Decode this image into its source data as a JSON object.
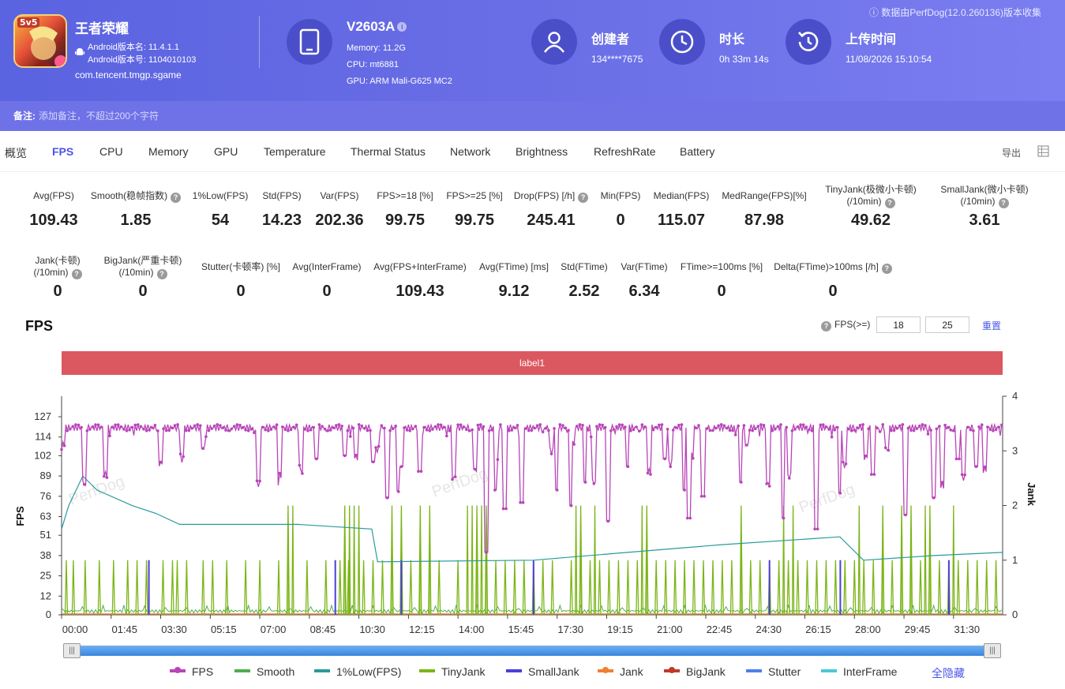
{
  "header": {
    "app_icon_badge": "5v5",
    "app_name": "王者荣耀",
    "android_version_name": "Android版本名: 11.4.1.1",
    "android_version_code": "Android版本号: 1104010103",
    "package": "com.tencent.tmgp.sgame",
    "device_name": "V2603A",
    "device_info_icon": "i",
    "memory": "Memory: 11.2G",
    "cpu": "CPU: mt6881",
    "gpu": "GPU: ARM Mali-G625 MC2",
    "creator_label": "创建者",
    "creator_value": "134****7675",
    "duration_label": "时长",
    "duration_value": "0h 33m 14s",
    "upload_label": "上传时间",
    "upload_value": "11/08/2026 15:10:54",
    "source_note": "ⓘ 数据由PerfDog(12.0.260136)版本收集"
  },
  "remark": {
    "label": "备注:",
    "placeholder": "添加备注，不超过200个字符"
  },
  "tabs": [
    "概览",
    "FPS",
    "CPU",
    "Memory",
    "GPU",
    "Temperature",
    "Thermal Status",
    "Network",
    "Brightness",
    "RefreshRate",
    "Battery"
  ],
  "active_tab": "FPS",
  "export_label": "导出",
  "stats_row1": [
    {
      "label": "Avg(FPS)",
      "value": "109.43"
    },
    {
      "label": "Smooth(稳帧指数)",
      "value": "1.85"
    },
    {
      "label": "1%Low(FPS)",
      "value": "54"
    },
    {
      "label": "Std(FPS)",
      "value": "14.23"
    },
    {
      "label": "Var(FPS)",
      "value": "202.36"
    },
    {
      "label": "FPS>=18 [%]",
      "value": "99.75"
    },
    {
      "label": "FPS>=25 [%]",
      "value": "99.75"
    },
    {
      "label": "Drop(FPS) [/h]",
      "value": "245.41"
    },
    {
      "label": "Min(FPS)",
      "value": "0"
    },
    {
      "label": "Median(FPS)",
      "value": "115.07"
    },
    {
      "label": "MedRange(FPS)[%]",
      "value": "87.98"
    },
    {
      "label": "TinyJank(极微小卡顿)",
      "label2": "(/10min)",
      "value": "49.62"
    },
    {
      "label": "SmallJank(微小卡顿)",
      "label2": "(/10min)",
      "value": "3.61"
    }
  ],
  "stats_row2": [
    {
      "label": "Jank(卡顿)",
      "label2": "(/10min)",
      "value": "0"
    },
    {
      "label": "BigJank(严重卡顿)",
      "label2": "(/10min)",
      "value": "0"
    },
    {
      "label": "Stutter(卡顿率) [%]",
      "value": "0"
    },
    {
      "label": "Avg(InterFrame)",
      "value": "0"
    },
    {
      "label": "Avg(FPS+InterFrame)",
      "value": "109.43"
    },
    {
      "label": "Avg(FTime) [ms]",
      "value": "9.12"
    },
    {
      "label": "Std(FTime)",
      "value": "2.52"
    },
    {
      "label": "Var(FTime)",
      "value": "6.34"
    },
    {
      "label": "FTime>=100ms [%]",
      "value": "0"
    },
    {
      "label": "Delta(FTime)>100ms [/h]",
      "value": "0"
    }
  ],
  "chart_header": {
    "title": "FPS",
    "threshold_label": "FPS(>=)",
    "threshold1": "18",
    "threshold2": "25",
    "reset": "重置",
    "label_bar": "label1",
    "help_icon": "?"
  },
  "chart_data": {
    "type": "line",
    "ylabel": "FPS",
    "y2label": "Jank",
    "y_ticks": [
      0,
      12,
      25,
      38,
      51,
      63,
      76,
      89,
      102,
      114,
      127
    ],
    "y2_ticks": [
      0,
      1,
      2,
      3,
      4
    ],
    "x_ticks": [
      "00:00",
      "01:45",
      "03:30",
      "05:15",
      "07:00",
      "08:45",
      "10:30",
      "12:15",
      "14:00",
      "15:45",
      "17:30",
      "19:15",
      "21:00",
      "22:45",
      "24:30",
      "26:15",
      "28:00",
      "29:45",
      "31:30"
    ],
    "x_range_seconds": [
      0,
      1994
    ],
    "ylim": [
      0,
      140
    ],
    "y2lim": [
      0,
      4
    ],
    "fps_baseline": 120,
    "fps_dips": [
      [
        540,
        100
      ],
      [
        600,
        102
      ],
      [
        660,
        98
      ],
      [
        690,
        75
      ],
      [
        720,
        95
      ],
      [
        760,
        92
      ],
      [
        900,
        40
      ],
      [
        920,
        80
      ],
      [
        940,
        68
      ],
      [
        975,
        72
      ],
      [
        1050,
        80
      ],
      [
        1080,
        70
      ],
      [
        1110,
        85
      ],
      [
        1160,
        60
      ],
      [
        1200,
        95
      ],
      [
        1280,
        100
      ],
      [
        1320,
        80
      ],
      [
        1330,
        62
      ],
      [
        1360,
        76
      ],
      [
        1440,
        85
      ],
      [
        1530,
        62
      ],
      [
        1600,
        55
      ],
      [
        1650,
        78
      ],
      [
        1720,
        90
      ],
      [
        1790,
        64
      ],
      [
        1850,
        75
      ],
      [
        1900,
        100
      ],
      [
        1940,
        95
      ]
    ],
    "low1_points": [
      [
        0,
        55
      ],
      [
        30,
        70
      ],
      [
        90,
        89
      ],
      [
        150,
        80
      ],
      [
        300,
        70
      ],
      [
        400,
        65
      ],
      [
        500,
        58
      ],
      [
        1000,
        58
      ],
      [
        1315,
        55
      ],
      [
        1340,
        34
      ],
      [
        2000,
        35
      ],
      [
        2400,
        40
      ],
      [
        2800,
        45
      ],
      [
        3300,
        50
      ],
      [
        3400,
        35
      ],
      [
        3700,
        38
      ],
      [
        3990,
        40
      ]
    ],
    "tinyjank_spike_times": [
      10,
      25,
      50,
      80,
      110,
      140,
      160,
      180,
      215,
      235,
      245,
      265,
      300,
      320,
      350,
      390,
      420,
      460,
      480,
      520,
      560,
      590,
      600,
      608,
      640,
      660,
      680,
      700,
      720,
      740,
      760,
      780,
      800,
      840,
      880,
      900,
      920,
      940,
      960,
      980,
      1000,
      1020,
      1040,
      1080,
      1100,
      1120,
      1140,
      1160,
      1180,
      1200,
      1220,
      1240,
      1260,
      1280,
      1300,
      1320,
      1340,
      1360,
      1380,
      1400,
      1420,
      1440,
      1460,
      1480,
      1500,
      1520,
      1540,
      1560,
      1580,
      1600,
      1620,
      1640,
      1660,
      1680,
      1700,
      1720,
      1740,
      1760,
      1780,
      1800,
      1820,
      1840,
      1860,
      1880,
      1900,
      1920,
      1940,
      1960,
      1980
    ],
    "tinyjank_tall_times": [
      480,
      490,
      600,
      610,
      620,
      630,
      700,
      720,
      760,
      780,
      860,
      870,
      880,
      890,
      900,
      1090,
      1100,
      1130,
      1230,
      1240,
      1440,
      1530,
      1550,
      1690,
      1740,
      1780,
      1800,
      1830,
      1840,
      1890
    ],
    "smalljank_times": [
      185,
      580,
      720,
      1000,
      1500,
      1650,
      1880
    ],
    "series": [
      {
        "name": "FPS",
        "color": "#b845b8",
        "marker": true
      },
      {
        "name": "Smooth",
        "color": "#4caf50"
      },
      {
        "name": "1%Low(FPS)",
        "color": "#2a9a9a"
      },
      {
        "name": "TinyJank",
        "color": "#7cb518"
      },
      {
        "name": "SmallJank",
        "color": "#4b3fd8"
      },
      {
        "name": "Jank",
        "color": "#f08030",
        "marker": true
      },
      {
        "name": "BigJank",
        "color": "#c0392b",
        "marker": true
      },
      {
        "name": "Stutter",
        "color": "#4d7fe8"
      },
      {
        "name": "InterFrame",
        "color": "#4ac8d8"
      }
    ],
    "hide_all": "全隐藏",
    "watermark": "PerfDog"
  },
  "colors": {
    "accent": "#4b55e8",
    "header": "#5a63e0",
    "label_bar": "#dc5860",
    "slider": "#4a90e2"
  }
}
